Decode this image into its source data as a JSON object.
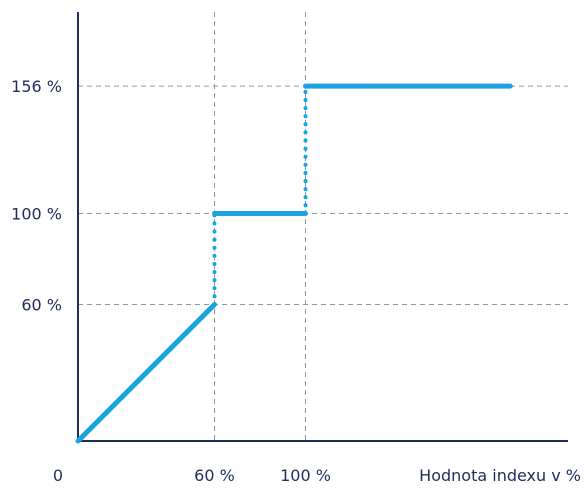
{
  "chart_data": {
    "type": "line",
    "title": "",
    "xlabel": "Hodnota indexu v %",
    "ylabel": "",
    "origin_label": "0",
    "x_ticks": [
      {
        "value": 60,
        "label": "60 %"
      },
      {
        "value": 100,
        "label": "100 %"
      }
    ],
    "y_ticks": [
      {
        "value": 60,
        "label": "60 %"
      },
      {
        "value": 100,
        "label": "100 %"
      },
      {
        "value": 156,
        "label": "156 %"
      }
    ],
    "xlim": [
      0,
      220
    ],
    "ylim": [
      0,
      200
    ],
    "grid": "dashed at ticks",
    "segments": [
      {
        "style": "solid",
        "x": [
          0,
          60
        ],
        "y": [
          0,
          60
        ]
      },
      {
        "style": "dotted",
        "x": [
          60,
          60
        ],
        "y": [
          60,
          100
        ]
      },
      {
        "style": "solid",
        "x": [
          60,
          100
        ],
        "y": [
          100,
          100
        ]
      },
      {
        "style": "dotted",
        "x": [
          100,
          100
        ],
        "y": [
          100,
          156
        ]
      },
      {
        "style": "solid",
        "x": [
          100,
          190
        ],
        "y": [
          156,
          156
        ]
      }
    ],
    "colors": {
      "line": "#1aa3e0",
      "axis": "#1f2d5a",
      "grid": "#8a96ad"
    }
  }
}
